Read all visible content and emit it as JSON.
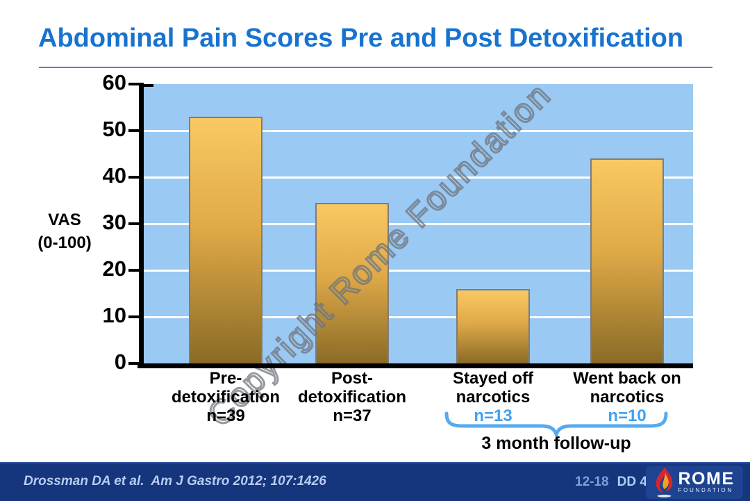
{
  "slide": {
    "title": "Abdominal Pain Scores Pre and Post Detoxification",
    "watermark": "Copyright Rome Foundation"
  },
  "chart_data": {
    "type": "bar",
    "title": "Abdominal Pain Scores Pre and Post Detoxification",
    "ylabel": "VAS (0-100)",
    "ylabel_lines": [
      "VAS",
      "(0-100)"
    ],
    "ylim": [
      0,
      60
    ],
    "yticks": [
      0,
      10,
      20,
      30,
      40,
      50,
      60
    ],
    "grid": "white horizontal gridlines on light blue plot background",
    "categories": [
      "Pre-detoxification",
      "Post-detoxification",
      "Stayed off narcotics",
      "Went back on narcotics"
    ],
    "category_lines": [
      [
        "Pre-",
        "detoxification"
      ],
      [
        "Post-",
        "detoxification"
      ],
      [
        "Stayed off",
        "narcotics"
      ],
      [
        "Went back on",
        "narcotics"
      ]
    ],
    "n_labels": [
      "n=39",
      "n=37",
      "n=13",
      "n=10"
    ],
    "n_label_styles": [
      "black",
      "black",
      "blue",
      "blue"
    ],
    "values": [
      53,
      34.5,
      16,
      44
    ],
    "annotation": "3 month follow-up",
    "annotation_scope": "brace under last two categories",
    "colors": {
      "bar_top": "#f9c963",
      "bar_bottom": "#8a6b26",
      "bar_border": "#7d7d7d",
      "plot_bg": "#9ac9f3",
      "n_label_blue": "#3fa2f5",
      "brace_blue": "#55aaf0",
      "title_blue": "#1873cf"
    }
  },
  "annotation": {
    "brace_label": "3 month follow-up"
  },
  "footer": {
    "citation": "Drossman DA et al.  Am J Gastro 2012; 107:1426",
    "slide_number": "12-18",
    "slide_code": "DD 4",
    "logo_name": "ROME",
    "logo_subname": "FOUNDATION",
    "bg_color": "#15357d",
    "citation_color": "#b9cdf0"
  }
}
